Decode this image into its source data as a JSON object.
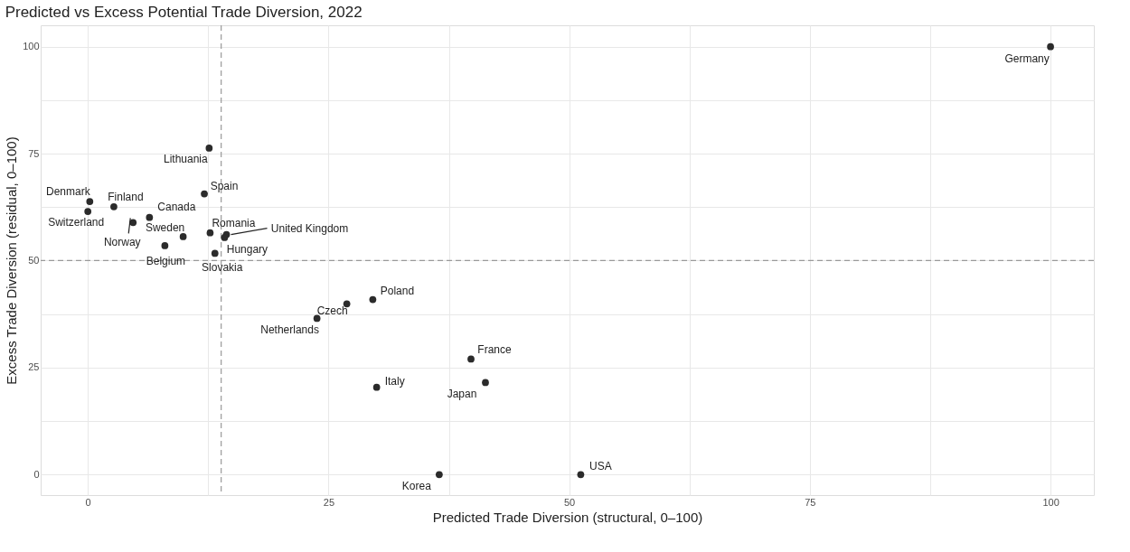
{
  "chart_data": {
    "type": "scatter",
    "title": "Predicted vs Excess Potential Trade Diversion, 2022",
    "xlabel": "Predicted Trade Diversion (structural, 0–100)",
    "ylabel": "Excess Trade Diversion (residual, 0–100)",
    "x": [
      100,
      12.6,
      12.1,
      0.2,
      2.7,
      0,
      6.4,
      4.7,
      9.9,
      8.0,
      12.7,
      14.4,
      14.2,
      13.2,
      29.6,
      26.9,
      23.8,
      39.8,
      30.0,
      41.3,
      36.5,
      51.2
    ],
    "values": [
      100,
      76.3,
      65.6,
      63.8,
      62.6,
      61.5,
      60.1,
      58.9,
      55.6,
      53.5,
      56.5,
      56.1,
      55.4,
      51.7,
      40.9,
      39.9,
      36.5,
      27.0,
      20.4,
      21.5,
      0,
      0
    ],
    "value_labels": [
      "Germany",
      "Lithuania",
      "Spain",
      "Denmark",
      "Finland",
      "Switzerland",
      "Canada",
      "Norway",
      "Sweden",
      "Belgium",
      "Romania",
      "United Kingdom",
      "Hungary",
      "Slovakia",
      "Poland",
      "Czech",
      "Netherlands",
      "France",
      "Italy",
      "Japan",
      "Korea",
      "USA"
    ],
    "color": "#2b2b2b",
    "marker": "circle",
    "xlim": [
      -4.9,
      104.5
    ],
    "ylim": [
      -4.8,
      105
    ],
    "xticks": [
      0,
      {
        "value": 12.5,
        "label": null
      },
      25,
      {
        "value": 37.5,
        "label": null
      },
      50,
      {
        "value": 62.5,
        "label": null
      },
      75,
      {
        "value": 87.5,
        "label": null
      },
      100
    ],
    "yticks": [
      0,
      {
        "value": 12.5,
        "label": null
      },
      25,
      {
        "value": 37.5,
        "label": null
      },
      50,
      {
        "value": 62.5,
        "label": null
      },
      75,
      {
        "value": 87.5,
        "label": null
      },
      100
    ],
    "grid": true,
    "ref_lines": [
      {
        "axis": "x",
        "value": 13.85,
        "color": "#999999",
        "line_style": "dashed"
      },
      {
        "axis": "y",
        "value": 50,
        "color": "#999999",
        "line_style": "dashed"
      }
    ]
  }
}
